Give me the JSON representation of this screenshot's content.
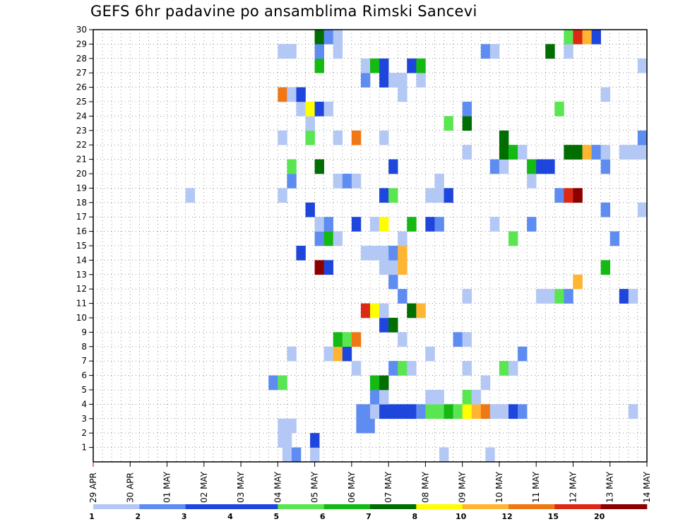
{
  "title": "GEFS 6hr padavine po ansamblima Rimski Sancevi",
  "chart_data": {
    "type": "heatmap",
    "title": "GEFS 6hr padavine po ansamblima Rimski Sancevi",
    "xlabel": "",
    "ylabel": "",
    "x_ticks": [
      "29 APR",
      "30 APR",
      "01 MAY",
      "02 MAY",
      "03 MAY",
      "04 MAY",
      "05 MAY",
      "06 MAY",
      "07 MAY",
      "08 MAY",
      "09 MAY",
      "10 MAY",
      "11 MAY",
      "12 MAY",
      "13 MAY",
      "14 MAY"
    ],
    "xlim": [
      0,
      60
    ],
    "x_unit": "6-hour steps from 29 APR 00Z",
    "y_ticks": [
      1,
      2,
      3,
      4,
      5,
      6,
      7,
      8,
      9,
      10,
      11,
      12,
      13,
      14,
      15,
      16,
      17,
      18,
      19,
      20,
      21,
      22,
      23,
      24,
      25,
      26,
      27,
      28,
      29,
      30
    ],
    "ylim": [
      0,
      30
    ],
    "grid": true,
    "legend": {
      "placement": "bottom",
      "levels": [
        "1",
        "2",
        "3",
        "4",
        "5",
        "6",
        "7",
        "8",
        "10",
        "12",
        "15",
        "20"
      ],
      "colors": [
        "#b4c8f5",
        "#5f8cf0",
        "#1e46dc",
        "#1e46dc",
        "#5ae650",
        "#14b914",
        "#006e00",
        "#ffff00",
        "#ffb432",
        "#f07814",
        "#dc2814",
        "#8c0000"
      ]
    },
    "bin_colors": [
      "#b4c8f5",
      "#5f8cf0",
      "#1e46dc",
      "#5ae650",
      "#14b914",
      "#006e00",
      "#ffff00",
      "#ffb432",
      "#f07814",
      "#dc2814",
      "#8c0000"
    ],
    "cells": [
      [
        20.5,
        0,
        0
      ],
      [
        21.5,
        0,
        1
      ],
      [
        23.5,
        0,
        0
      ],
      [
        37.5,
        0,
        0
      ],
      [
        42.5,
        0,
        0
      ],
      [
        20.5,
        1,
        0
      ],
      [
        23.5,
        1,
        2
      ],
      [
        20,
        1,
        0
      ],
      [
        20,
        2,
        0
      ],
      [
        21,
        2,
        0
      ],
      [
        28.5,
        2,
        1
      ],
      [
        29.5,
        2,
        1
      ],
      [
        28.5,
        3,
        1
      ],
      [
        29.5,
        3,
        1
      ],
      [
        30,
        3,
        0
      ],
      [
        31,
        3,
        2
      ],
      [
        32,
        3,
        2
      ],
      [
        33,
        3,
        2
      ],
      [
        34,
        3,
        2
      ],
      [
        35,
        3,
        1
      ],
      [
        36,
        3,
        3
      ],
      [
        37,
        3,
        3
      ],
      [
        38,
        3,
        4
      ],
      [
        39,
        3,
        3
      ],
      [
        40,
        3,
        6
      ],
      [
        41,
        3,
        7
      ],
      [
        42,
        3,
        8
      ],
      [
        43,
        3,
        0
      ],
      [
        44,
        3,
        0
      ],
      [
        45,
        3,
        2
      ],
      [
        46,
        3,
        1
      ],
      [
        58,
        3,
        0
      ],
      [
        30,
        4,
        1
      ],
      [
        31,
        4,
        0
      ],
      [
        36,
        4,
        0
      ],
      [
        37,
        4,
        0
      ],
      [
        40,
        4,
        3
      ],
      [
        41,
        4,
        0
      ],
      [
        19,
        5,
        1
      ],
      [
        20,
        5,
        3
      ],
      [
        30,
        5,
        4
      ],
      [
        31,
        5,
        5
      ],
      [
        42,
        5,
        0
      ],
      [
        28,
        6,
        0
      ],
      [
        32,
        6,
        1
      ],
      [
        33,
        6,
        3
      ],
      [
        34,
        6,
        0
      ],
      [
        40,
        6,
        0
      ],
      [
        44,
        6,
        3
      ],
      [
        45,
        6,
        0
      ],
      [
        21,
        7,
        0
      ],
      [
        25,
        7,
        0
      ],
      [
        26,
        7,
        7
      ],
      [
        27,
        7,
        2
      ],
      [
        36,
        7,
        0
      ],
      [
        46,
        7,
        1
      ],
      [
        26,
        8,
        4
      ],
      [
        27,
        8,
        3
      ],
      [
        28,
        8,
        8
      ],
      [
        33,
        8,
        0
      ],
      [
        39,
        8,
        1
      ],
      [
        40,
        8,
        0
      ],
      [
        31,
        9,
        2
      ],
      [
        32,
        9,
        5
      ],
      [
        29,
        10,
        9
      ],
      [
        30,
        10,
        6
      ],
      [
        31,
        10,
        0
      ],
      [
        34,
        10,
        5
      ],
      [
        35,
        10,
        7
      ],
      [
        33,
        11,
        1
      ],
      [
        40,
        11,
        0
      ],
      [
        48,
        11,
        0
      ],
      [
        49,
        11,
        0
      ],
      [
        50,
        11,
        3
      ],
      [
        51,
        11,
        1
      ],
      [
        57,
        11,
        2
      ],
      [
        58,
        11,
        0
      ],
      [
        32,
        12,
        1
      ],
      [
        52,
        12,
        7
      ],
      [
        24,
        13,
        10
      ],
      [
        25,
        13,
        2
      ],
      [
        31,
        13,
        0
      ],
      [
        32,
        13,
        0
      ],
      [
        33,
        13,
        7
      ],
      [
        55,
        13,
        4
      ],
      [
        22,
        14,
        2
      ],
      [
        29,
        14,
        0
      ],
      [
        30,
        14,
        0
      ],
      [
        31,
        14,
        0
      ],
      [
        32,
        14,
        1
      ],
      [
        33,
        14,
        7
      ],
      [
        24,
        15,
        1
      ],
      [
        25,
        15,
        4
      ],
      [
        26,
        15,
        0
      ],
      [
        33,
        15,
        0
      ],
      [
        45,
        15,
        3
      ],
      [
        56,
        15,
        1
      ],
      [
        24,
        16,
        0
      ],
      [
        25,
        16,
        1
      ],
      [
        28,
        16,
        2
      ],
      [
        30,
        16,
        0
      ],
      [
        31,
        16,
        6
      ],
      [
        34,
        16,
        4
      ],
      [
        36,
        16,
        2
      ],
      [
        37,
        16,
        1
      ],
      [
        43,
        16,
        0
      ],
      [
        47,
        16,
        1
      ],
      [
        23,
        17,
        2
      ],
      [
        55,
        17,
        1
      ],
      [
        59,
        17,
        0
      ],
      [
        10,
        18,
        0
      ],
      [
        20,
        18,
        0
      ],
      [
        31,
        18,
        2
      ],
      [
        32,
        18,
        3
      ],
      [
        36,
        18,
        0
      ],
      [
        37,
        18,
        0
      ],
      [
        38,
        18,
        2
      ],
      [
        50,
        18,
        1
      ],
      [
        51,
        18,
        9
      ],
      [
        52,
        18,
        10
      ],
      [
        21,
        19,
        1
      ],
      [
        26,
        19,
        0
      ],
      [
        27,
        19,
        1
      ],
      [
        28,
        19,
        0
      ],
      [
        37,
        19,
        0
      ],
      [
        47,
        19,
        0
      ],
      [
        21,
        20,
        3
      ],
      [
        24,
        20,
        5
      ],
      [
        32,
        20,
        2
      ],
      [
        43,
        20,
        1
      ],
      [
        44,
        20,
        0
      ],
      [
        47,
        20,
        4
      ],
      [
        48,
        20,
        2
      ],
      [
        49,
        20,
        2
      ],
      [
        55,
        20,
        1
      ],
      [
        40,
        21,
        0
      ],
      [
        44,
        21,
        5
      ],
      [
        45,
        21,
        4
      ],
      [
        46,
        21,
        0
      ],
      [
        51,
        21,
        5
      ],
      [
        52,
        21,
        5
      ],
      [
        53,
        21,
        7
      ],
      [
        54,
        21,
        1
      ],
      [
        55,
        21,
        0
      ],
      [
        57,
        21,
        0
      ],
      [
        58,
        21,
        0
      ],
      [
        59,
        21,
        0
      ],
      [
        20,
        22,
        0
      ],
      [
        23,
        22,
        3
      ],
      [
        26,
        22,
        0
      ],
      [
        28,
        22,
        8
      ],
      [
        31,
        22,
        0
      ],
      [
        44,
        22,
        5
      ],
      [
        59,
        22,
        1
      ],
      [
        23,
        23,
        0
      ],
      [
        38,
        23,
        3
      ],
      [
        40,
        23,
        5
      ],
      [
        22,
        24,
        0
      ],
      [
        23,
        24,
        6
      ],
      [
        24,
        24,
        2
      ],
      [
        25,
        24,
        0
      ],
      [
        40,
        24,
        1
      ],
      [
        50,
        24,
        3
      ],
      [
        20,
        25,
        8
      ],
      [
        21,
        25,
        0
      ],
      [
        22,
        25,
        2
      ],
      [
        33,
        25,
        0
      ],
      [
        55,
        25,
        0
      ],
      [
        29,
        26,
        1
      ],
      [
        31,
        26,
        2
      ],
      [
        32,
        26,
        0
      ],
      [
        33,
        26,
        0
      ],
      [
        35,
        26,
        0
      ],
      [
        24,
        27,
        4
      ],
      [
        29,
        27,
        0
      ],
      [
        30,
        27,
        4
      ],
      [
        31,
        27,
        2
      ],
      [
        34,
        27,
        2
      ],
      [
        35,
        27,
        4
      ],
      [
        59,
        27,
        0
      ],
      [
        20,
        28,
        0
      ],
      [
        21,
        28,
        0
      ],
      [
        24,
        28,
        1
      ],
      [
        26,
        28,
        0
      ],
      [
        42,
        28,
        1
      ],
      [
        43,
        28,
        0
      ],
      [
        49,
        28,
        5
      ],
      [
        51,
        28,
        0
      ],
      [
        24,
        29,
        5
      ],
      [
        25,
        29,
        1
      ],
      [
        26,
        29,
        0
      ],
      [
        51,
        29,
        3
      ],
      [
        52,
        29,
        9
      ],
      [
        53,
        29,
        7
      ],
      [
        54,
        29,
        2
      ]
    ]
  }
}
